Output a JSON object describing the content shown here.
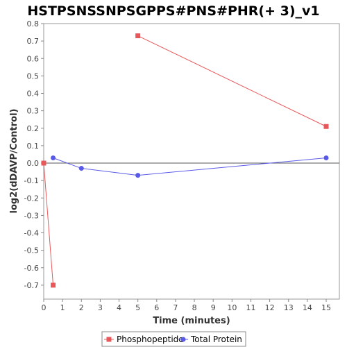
{
  "chart_data": {
    "type": "line",
    "title": "HSTPSNSSNPSGPPS#PNS#PHR(+ 3)_v1",
    "xlabel": "Time (minutes)",
    "ylabel": "log2(dDAVP/Control)",
    "xlim": [
      0,
      15.7
    ],
    "ylim": [
      -0.78,
      0.8
    ],
    "xticks": [
      0,
      1,
      2,
      3,
      4,
      5,
      6,
      7,
      8,
      9,
      10,
      11,
      12,
      13,
      14,
      15
    ],
    "yticks": [
      0.8,
      0.7,
      0.6,
      0.5,
      0.4,
      0.3,
      0.2,
      0.1,
      0.0,
      -0.1,
      -0.2,
      -0.3,
      -0.4,
      -0.5,
      -0.6,
      -0.7
    ],
    "ytick_labels": [
      "0.8",
      "0.7",
      "0.6",
      "0.5",
      "0.4",
      "0.3",
      "0.2",
      "0.1",
      "0.0",
      "-0.1",
      "-0.2",
      "-0.3",
      "-0.4",
      "-0.5",
      "-0.6",
      "-0.7"
    ],
    "zero_line": true,
    "grid": false,
    "legend_position": "bottom-center",
    "series": [
      {
        "name": "Phosphopeptide",
        "color": "#e8585a",
        "marker": "square",
        "segments": [
          [
            {
              "x": 0,
              "y": 0.0
            },
            {
              "x": 0.5,
              "y": -0.7
            }
          ],
          [
            {
              "x": 5,
              "y": 0.73
            },
            {
              "x": 15,
              "y": 0.21
            }
          ]
        ]
      },
      {
        "name": "Total Protein",
        "color": "#5a5ae8",
        "marker": "circle",
        "segments": [
          [
            {
              "x": 0.5,
              "y": 0.03
            },
            {
              "x": 2,
              "y": -0.03
            },
            {
              "x": 5,
              "y": -0.07
            },
            {
              "x": 15,
              "y": 0.03
            }
          ]
        ]
      }
    ]
  }
}
